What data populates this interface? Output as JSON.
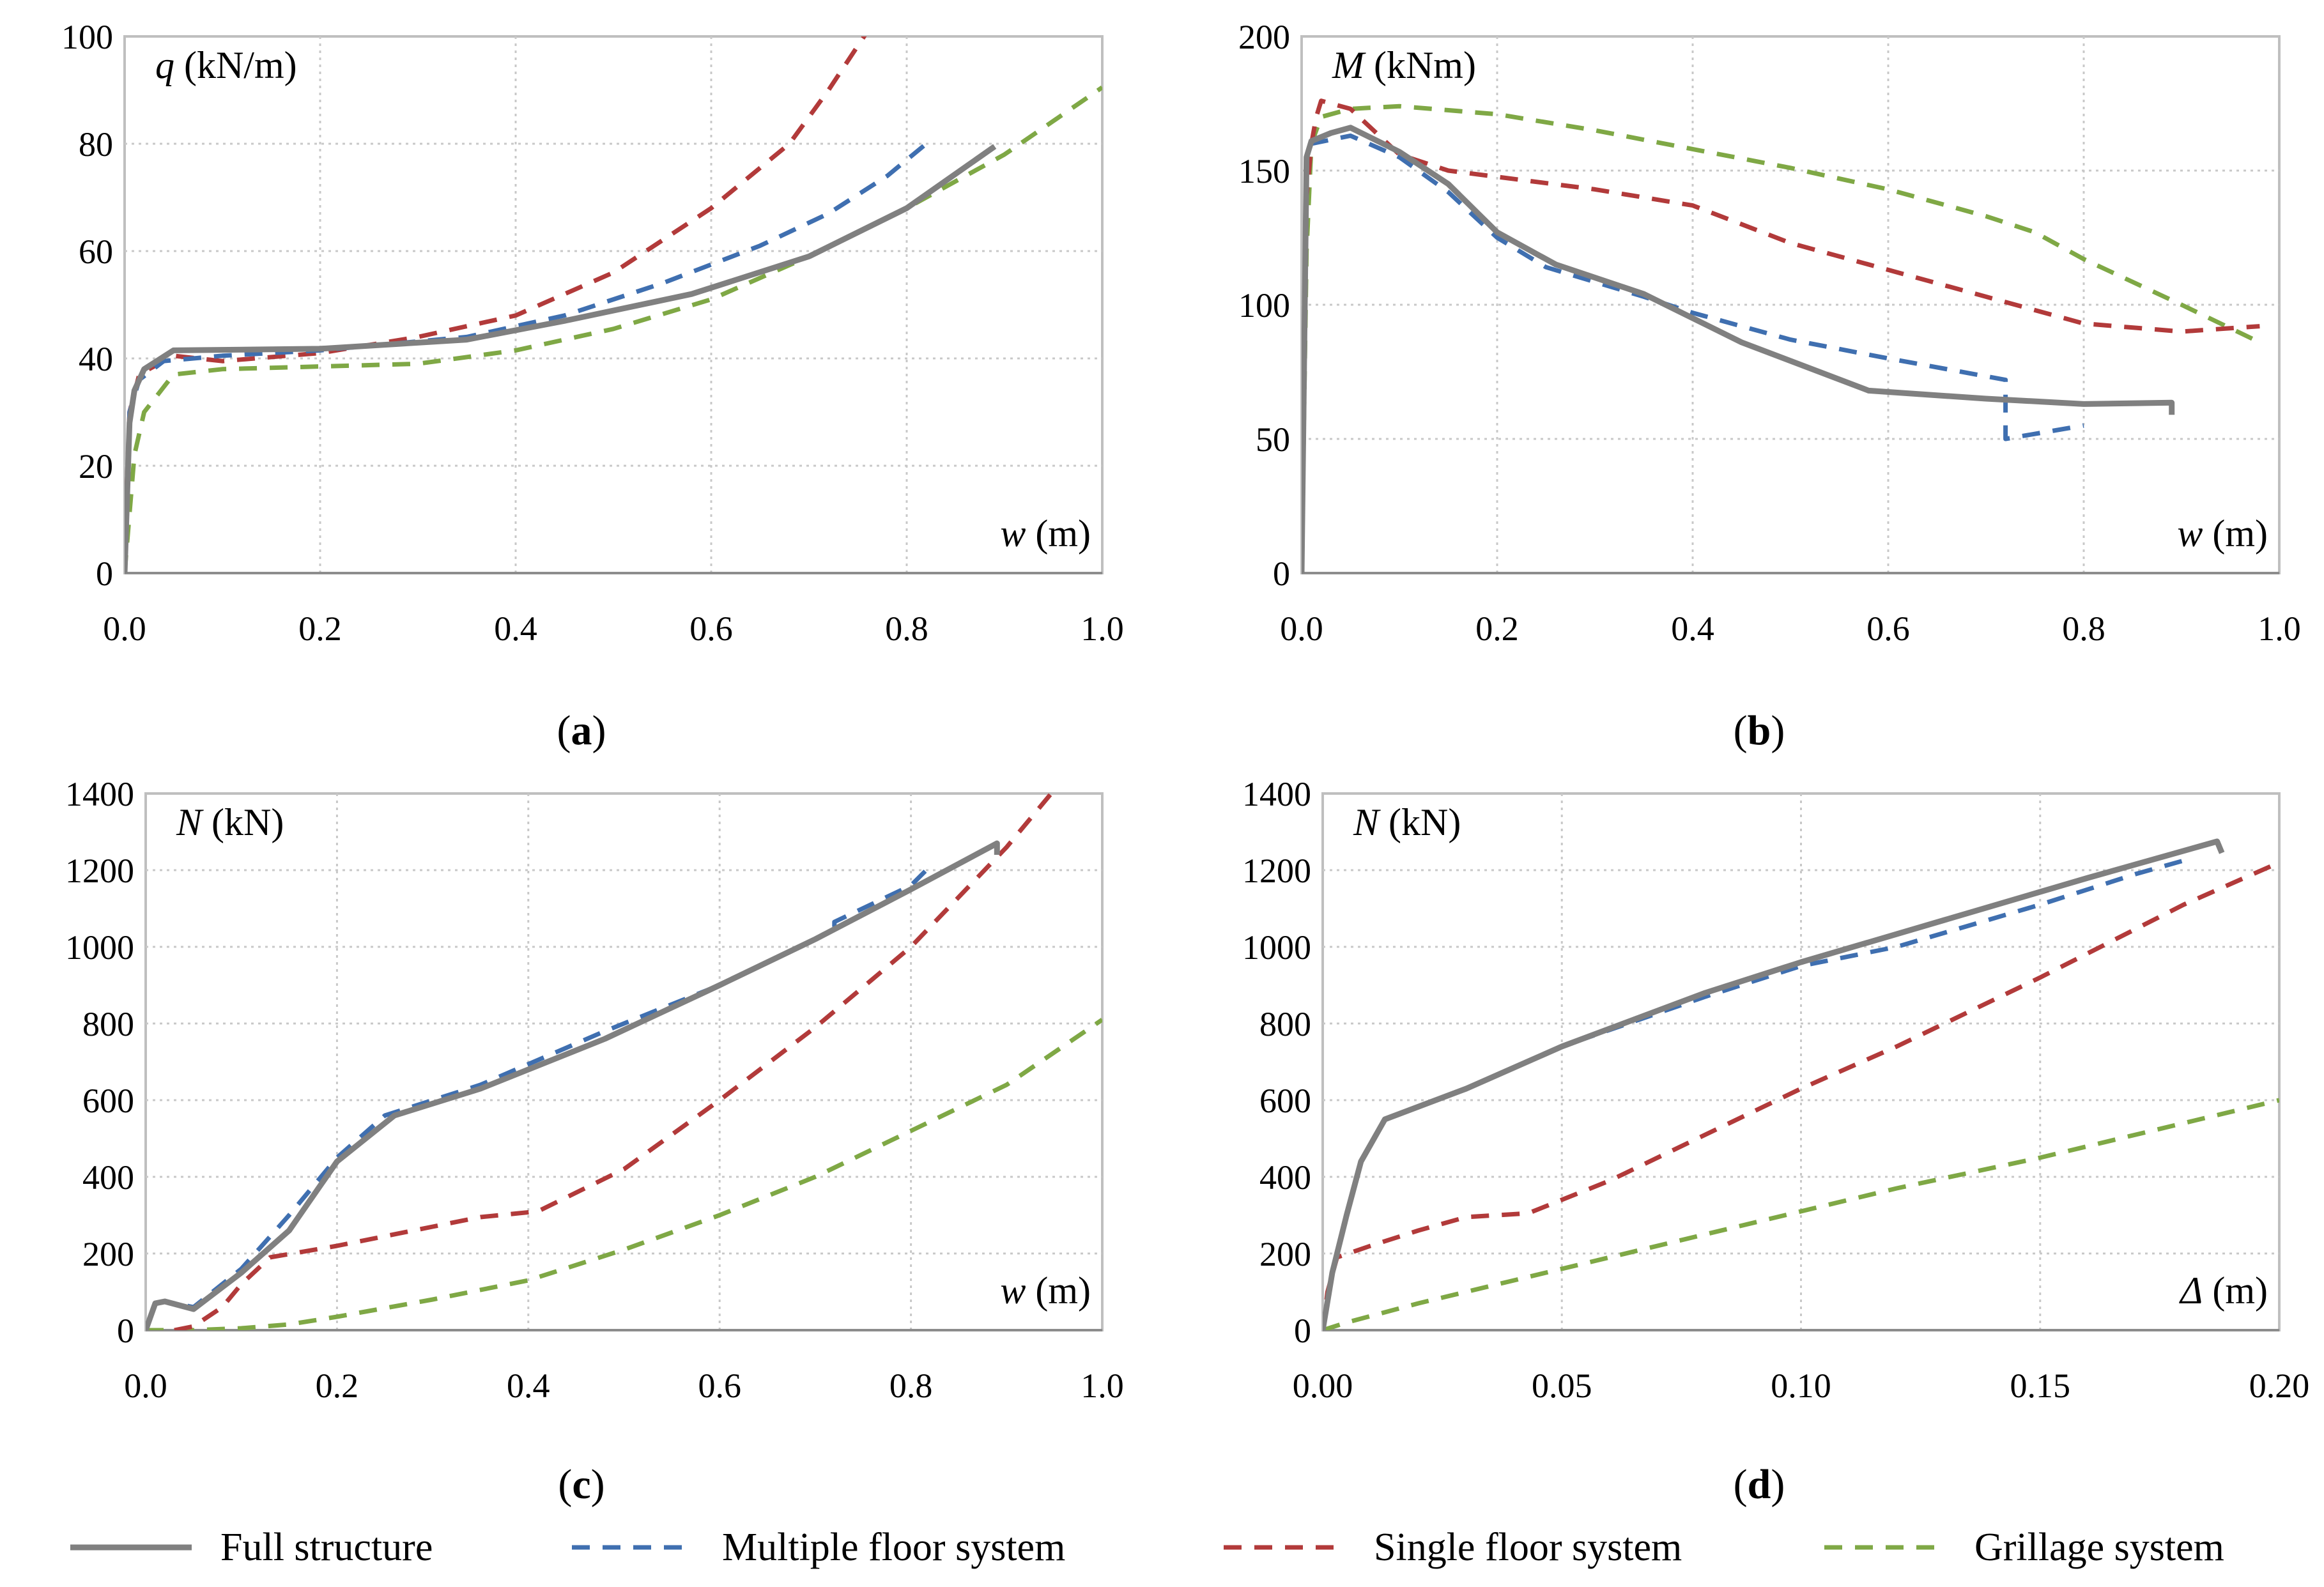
{
  "legend": [
    {
      "name": "Full structure",
      "color": "#808080",
      "style": "solid"
    },
    {
      "name": "Multiple floor system",
      "color": "#3f6fb0",
      "style": "dashed"
    },
    {
      "name": "Single floor system",
      "color": "#b23a3a",
      "style": "dashed"
    },
    {
      "name": "Grillage system",
      "color": "#7fa845",
      "style": "dashed"
    }
  ],
  "chart_data": [
    {
      "type": "line",
      "panel_label": "a",
      "ylabel_symbol": "q",
      "ylabel_unit": "(kN/m)",
      "xlabel_symbol": "w",
      "xlabel_unit": "(m)",
      "xlim": [
        0,
        1.0
      ],
      "ylim": [
        0,
        100
      ],
      "xticks": [
        "0.0",
        "0.2",
        "0.4",
        "0.6",
        "0.8",
        "1.0"
      ],
      "yticks": [
        "0",
        "20",
        "40",
        "60",
        "80",
        "100"
      ],
      "grid": true,
      "series": [
        {
          "name": "Full structure",
          "points": [
            [
              0,
              0
            ],
            [
              0.005,
              28
            ],
            [
              0.01,
              34
            ],
            [
              0.02,
              38
            ],
            [
              0.05,
              41.5
            ],
            [
              0.2,
              41.8
            ],
            [
              0.35,
              43.5
            ],
            [
              0.45,
              47
            ],
            [
              0.58,
              52
            ],
            [
              0.7,
              59
            ],
            [
              0.8,
              68
            ],
            [
              0.89,
              79.5
            ]
          ]
        },
        {
          "name": "Multiple floor system",
          "points": [
            [
              0,
              0
            ],
            [
              0.005,
              30
            ],
            [
              0.015,
              36
            ],
            [
              0.04,
              39.5
            ],
            [
              0.1,
              40.5
            ],
            [
              0.2,
              41.5
            ],
            [
              0.35,
              44
            ],
            [
              0.45,
              48
            ],
            [
              0.55,
              54
            ],
            [
              0.65,
              61
            ],
            [
              0.72,
              67
            ],
            [
              0.78,
              74
            ],
            [
              0.82,
              80
            ]
          ]
        },
        {
          "name": "Single floor system",
          "points": [
            [
              0,
              5
            ],
            [
              0.005,
              30
            ],
            [
              0.015,
              37
            ],
            [
              0.05,
              40.5
            ],
            [
              0.1,
              39.5
            ],
            [
              0.2,
              41
            ],
            [
              0.3,
              44
            ],
            [
              0.4,
              48
            ],
            [
              0.5,
              56
            ],
            [
              0.6,
              68
            ],
            [
              0.68,
              80
            ],
            [
              0.72,
              90
            ],
            [
              0.76,
              101
            ]
          ]
        },
        {
          "name": "Grillage system",
          "points": [
            [
              0,
              0
            ],
            [
              0.01,
              22
            ],
            [
              0.02,
              30
            ],
            [
              0.05,
              37
            ],
            [
              0.1,
              38
            ],
            [
              0.2,
              38.5
            ],
            [
              0.3,
              39
            ],
            [
              0.4,
              41.5
            ],
            [
              0.5,
              45.5
            ],
            [
              0.6,
              51
            ],
            [
              0.7,
              59
            ],
            [
              0.8,
              68
            ],
            [
              0.9,
              78
            ],
            [
              1.0,
              90.5
            ]
          ]
        }
      ]
    },
    {
      "type": "line",
      "panel_label": "b",
      "ylabel_symbol": "M",
      "ylabel_unit": "(kNm)",
      "xlabel_symbol": "w",
      "xlabel_unit": "(m)",
      "xlim": [
        0,
        1.0
      ],
      "ylim": [
        0,
        200
      ],
      "xticks": [
        "0.0",
        "0.2",
        "0.4",
        "0.6",
        "0.8",
        "1.0"
      ],
      "yticks": [
        "0",
        "50",
        "100",
        "150",
        "200"
      ],
      "grid": true,
      "series": [
        {
          "name": "Full structure",
          "points": [
            [
              0,
              0
            ],
            [
              0.005,
              155
            ],
            [
              0.01,
              161
            ],
            [
              0.03,
              164
            ],
            [
              0.05,
              166
            ],
            [
              0.1,
              157
            ],
            [
              0.15,
              145
            ],
            [
              0.2,
              127
            ],
            [
              0.26,
              115
            ],
            [
              0.35,
              104
            ],
            [
              0.45,
              86
            ],
            [
              0.58,
              68
            ],
            [
              0.7,
              65
            ],
            [
              0.8,
              63
            ],
            [
              0.89,
              63.5
            ],
            [
              0.89,
              59
            ]
          ]
        },
        {
          "name": "Multiple floor system",
          "points": [
            [
              0,
              0
            ],
            [
              0.005,
              155
            ],
            [
              0.01,
              160
            ],
            [
              0.05,
              163
            ],
            [
              0.1,
              155
            ],
            [
              0.15,
              142
            ],
            [
              0.2,
              125
            ],
            [
              0.25,
              114
            ],
            [
              0.35,
              103
            ],
            [
              0.4,
              97
            ],
            [
              0.5,
              87
            ],
            [
              0.6,
              80
            ],
            [
              0.72,
              72
            ],
            [
              0.72,
              50
            ],
            [
              0.8,
              55
            ]
          ]
        },
        {
          "name": "Single floor system",
          "points": [
            [
              0,
              0
            ],
            [
              0.005,
              140
            ],
            [
              0.01,
              160
            ],
            [
              0.015,
              170
            ],
            [
              0.02,
              176
            ],
            [
              0.05,
              173
            ],
            [
              0.1,
              156
            ],
            [
              0.15,
              150
            ],
            [
              0.3,
              143
            ],
            [
              0.4,
              137
            ],
            [
              0.5,
              123
            ],
            [
              0.6,
              113
            ],
            [
              0.7,
              103
            ],
            [
              0.8,
              93
            ],
            [
              0.9,
              90
            ],
            [
              0.98,
              92
            ]
          ]
        },
        {
          "name": "Grillage system",
          "points": [
            [
              0,
              0
            ],
            [
              0.005,
              120
            ],
            [
              0.01,
              160
            ],
            [
              0.02,
              170
            ],
            [
              0.05,
              173
            ],
            [
              0.1,
              174
            ],
            [
              0.2,
              171
            ],
            [
              0.3,
              165
            ],
            [
              0.4,
              158
            ],
            [
              0.5,
              151
            ],
            [
              0.6,
              143
            ],
            [
              0.7,
              133
            ],
            [
              0.75,
              127
            ],
            [
              0.8,
              117
            ],
            [
              0.9,
              100
            ],
            [
              0.98,
              86
            ]
          ]
        }
      ]
    },
    {
      "type": "line",
      "panel_label": "c",
      "ylabel_symbol": "N",
      "ylabel_unit": "(kN)",
      "xlabel_symbol": "w",
      "xlabel_unit": "(m)",
      "xlim": [
        0,
        1.0
      ],
      "ylim": [
        0,
        1400
      ],
      "xticks": [
        "0.0",
        "0.2",
        "0.4",
        "0.6",
        "0.8",
        "1.0"
      ],
      "yticks": [
        "0",
        "200",
        "400",
        "600",
        "800",
        "1000",
        "1200",
        "1400"
      ],
      "grid": true,
      "series": [
        {
          "name": "Full structure",
          "points": [
            [
              0,
              0
            ],
            [
              0.01,
              70
            ],
            [
              0.02,
              75
            ],
            [
              0.05,
              55
            ],
            [
              0.1,
              150
            ],
            [
              0.15,
              260
            ],
            [
              0.2,
              440
            ],
            [
              0.26,
              560
            ],
            [
              0.35,
              630
            ],
            [
              0.48,
              760
            ],
            [
              0.6,
              900
            ],
            [
              0.7,
              1020
            ],
            [
              0.8,
              1150
            ],
            [
              0.89,
              1270
            ],
            [
              0.89,
              1240
            ]
          ]
        },
        {
          "name": "Multiple floor system",
          "points": [
            [
              0,
              0
            ],
            [
              0.01,
              70
            ],
            [
              0.02,
              75
            ],
            [
              0.05,
              60
            ],
            [
              0.1,
              160
            ],
            [
              0.15,
              300
            ],
            [
              0.2,
              450
            ],
            [
              0.25,
              560
            ],
            [
              0.35,
              640
            ],
            [
              0.48,
              780
            ],
            [
              0.6,
              900
            ],
            [
              0.7,
              1020
            ],
            [
              0.72,
              1050
            ],
            [
              0.72,
              1065
            ],
            [
              0.8,
              1160
            ],
            [
              0.82,
              1210
            ]
          ]
        },
        {
          "name": "Single floor system",
          "points": [
            [
              0.03,
              0
            ],
            [
              0.05,
              10
            ],
            [
              0.08,
              60
            ],
            [
              0.1,
              120
            ],
            [
              0.13,
              190
            ],
            [
              0.2,
              220
            ],
            [
              0.3,
              270
            ],
            [
              0.35,
              295
            ],
            [
              0.41,
              310
            ],
            [
              0.5,
              420
            ],
            [
              0.6,
              600
            ],
            [
              0.7,
              790
            ],
            [
              0.8,
              1000
            ],
            [
              0.9,
              1260
            ],
            [
              0.95,
              1410
            ]
          ]
        },
        {
          "name": "Grillage system",
          "points": [
            [
              0,
              0
            ],
            [
              0.05,
              0
            ],
            [
              0.1,
              5
            ],
            [
              0.15,
              15
            ],
            [
              0.2,
              35
            ],
            [
              0.3,
              80
            ],
            [
              0.4,
              130
            ],
            [
              0.5,
              210
            ],
            [
              0.6,
              300
            ],
            [
              0.7,
              400
            ],
            [
              0.8,
              520
            ],
            [
              0.9,
              640
            ],
            [
              1.0,
              810
            ]
          ]
        }
      ]
    },
    {
      "type": "line",
      "panel_label": "d",
      "ylabel_symbol": "N",
      "ylabel_unit": "(kN)",
      "xlabel_symbol": "Δ",
      "xlabel_unit": "(m)",
      "xlim": [
        0,
        0.2
      ],
      "ylim": [
        0,
        1400
      ],
      "xticks": [
        "0.00",
        "0.05",
        "0.10",
        "0.15",
        "0.20"
      ],
      "yticks": [
        "0",
        "200",
        "400",
        "600",
        "800",
        "1000",
        "1200",
        "1400"
      ],
      "grid": true,
      "series": [
        {
          "name": "Full structure",
          "points": [
            [
              0,
              0
            ],
            [
              0.002,
              150
            ],
            [
              0.005,
              300
            ],
            [
              0.008,
              440
            ],
            [
              0.013,
              550
            ],
            [
              0.03,
              630
            ],
            [
              0.05,
              740
            ],
            [
              0.08,
              880
            ],
            [
              0.1,
              960
            ],
            [
              0.13,
              1070
            ],
            [
              0.16,
              1180
            ],
            [
              0.187,
              1275
            ],
            [
              0.188,
              1245
            ]
          ]
        },
        {
          "name": "Multiple floor system",
          "points": [
            [
              0,
              0
            ],
            [
              0.002,
              150
            ],
            [
              0.005,
              300
            ],
            [
              0.008,
              440
            ],
            [
              0.013,
              550
            ],
            [
              0.03,
              630
            ],
            [
              0.05,
              740
            ],
            [
              0.08,
              870
            ],
            [
              0.1,
              950
            ],
            [
              0.12,
              1000
            ],
            [
              0.15,
              1110
            ],
            [
              0.17,
              1190
            ],
            [
              0.18,
              1225
            ]
          ]
        },
        {
          "name": "Single floor system",
          "points": [
            [
              0,
              0
            ],
            [
              0.001,
              100
            ],
            [
              0.003,
              190
            ],
            [
              0.01,
              220
            ],
            [
              0.02,
              260
            ],
            [
              0.03,
              295
            ],
            [
              0.043,
              305
            ],
            [
              0.06,
              390
            ],
            [
              0.08,
              510
            ],
            [
              0.1,
              630
            ],
            [
              0.12,
              740
            ],
            [
              0.15,
              920
            ],
            [
              0.18,
              1110
            ],
            [
              0.2,
              1220
            ]
          ]
        },
        {
          "name": "Grillage system",
          "points": [
            [
              0,
              0
            ],
            [
              0.005,
              20
            ],
            [
              0.02,
              70
            ],
            [
              0.05,
              160
            ],
            [
              0.08,
              250
            ],
            [
              0.1,
              310
            ],
            [
              0.12,
              370
            ],
            [
              0.15,
              450
            ],
            [
              0.17,
              510
            ],
            [
              0.2,
              600
            ]
          ]
        }
      ]
    }
  ]
}
